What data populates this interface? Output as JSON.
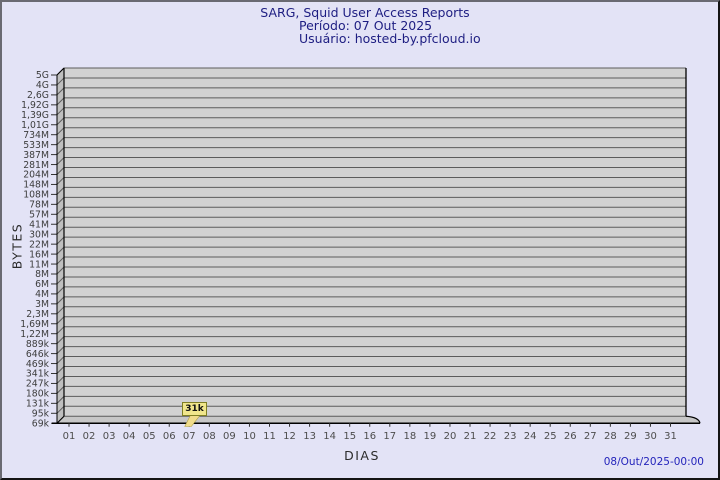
{
  "header": {
    "title": "SARG, Squid User Access Reports",
    "period": "Período: 07 Out 2025",
    "user": "Usuário: hosted-by.pfcloud.io"
  },
  "footer": {
    "timestamp": "08/Out/2025-00:00"
  },
  "chart_data": {
    "type": "line",
    "title": "SARG, Squid User Access Reports",
    "subtitle": "Período: 07 Out 2025",
    "user_line": "Usuário: hosted-by.pfcloud.io",
    "xlabel": "DIAS",
    "ylabel": "BYTES",
    "x_ticklabels": [
      "01",
      "02",
      "03",
      "04",
      "05",
      "06",
      "07",
      "08",
      "09",
      "10",
      "11",
      "12",
      "13",
      "14",
      "15",
      "16",
      "17",
      "18",
      "19",
      "20",
      "21",
      "22",
      "23",
      "24",
      "25",
      "26",
      "27",
      "28",
      "29",
      "30",
      "31"
    ],
    "y_ticklabels": [
      "5G",
      "4G",
      "2,6G",
      "1,92G",
      "1,39G",
      "1,01G",
      "734M",
      "533M",
      "387M",
      "281M",
      "204M",
      "148M",
      "108M",
      "78M",
      "57M",
      "41M",
      "30M",
      "22M",
      "16M",
      "11M",
      "8M",
      "6M",
      "4M",
      "3M",
      "2,3M",
      "1,69M",
      "1,22M",
      "889k",
      "646k",
      "469k",
      "341k",
      "247k",
      "180k",
      "131k",
      "95k",
      "69k"
    ],
    "y_axis_scale": "log",
    "grid": true,
    "style3d": true,
    "legend_position": "none",
    "points": [
      {
        "x": "07",
        "value_label": "31k"
      }
    ]
  },
  "colors": {
    "background": "#e3e3f6",
    "plot_bg": "#d2d2d2",
    "grid": "#5c5c5c",
    "wall": "#bfbfbf",
    "floor": "#c7c7c7",
    "axis": "#000000",
    "title_text": "#1e1e82",
    "timestamp_text": "#2424bb",
    "y_tick_text": "#3d3d3d",
    "x_tick_text": "#4d4d4d",
    "flag_bg": "#f0e68c",
    "flag_border": "#7f7f24",
    "flag_pointer": "#f0dc8c",
    "flag_text": "#111111"
  }
}
